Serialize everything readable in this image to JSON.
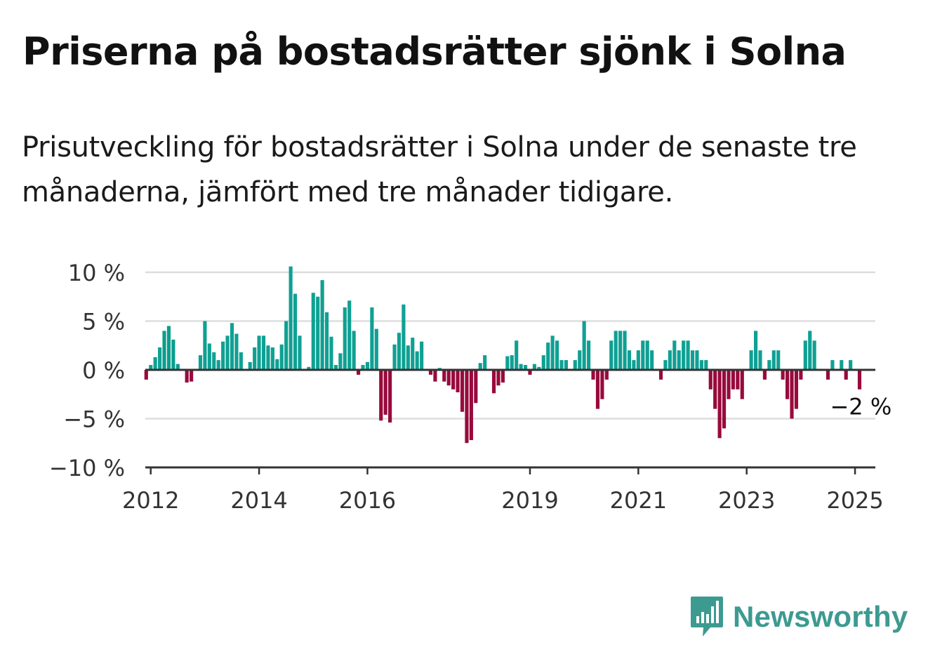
{
  "title": "Priserna på bostadsrätter sjönk i Solna",
  "subtitle": "Prisutveckling för bostadsrätter i Solna under de senaste tre månaderna, jämfört med tre månader tidigare.",
  "brand": {
    "name": "Newsworthy",
    "icon": "newsworthy-logo-icon",
    "color": "#3d9a91"
  },
  "colors": {
    "positive": "#0fa093",
    "negative": "#980a3c",
    "highlight": "#0a9e8e",
    "grid": "#dddddd",
    "axis": "#333333"
  },
  "chart_data": {
    "type": "bar",
    "title": "Priserna på bostadsrätter sjönk i Solna",
    "subtitle": "Prisutveckling för bostadsrätter i Solna under de senaste tre månaderna, jämfört med tre månader tidigare.",
    "xlabel": "",
    "ylabel": "",
    "ylim": [
      -10,
      10
    ],
    "yticks": [
      10,
      5,
      0,
      -5,
      -10
    ],
    "ytick_labels": [
      "10 %",
      "5 %",
      "0 %",
      "−5 %",
      "−10 %"
    ],
    "xticks": [
      2012,
      2014,
      2016,
      2019,
      2021,
      2023,
      2025
    ],
    "xtick_labels": [
      "2012",
      "2014",
      "2016",
      "2019",
      "2021",
      "2023",
      "2025"
    ],
    "grid": true,
    "highlight_range": [
      "2012-04",
      "2012-09"
    ],
    "annotation": {
      "text": "−2 %",
      "date": "2025-02",
      "value": -2
    },
    "x": [
      "2011-12",
      "2012-01",
      "2012-02",
      "2012-03",
      "2012-04",
      "2012-05",
      "2012-06",
      "2012-07",
      "2012-08",
      "2012-09",
      "2012-10",
      "2012-11",
      "2012-12",
      "2013-01",
      "2013-02",
      "2013-03",
      "2013-04",
      "2013-05",
      "2013-06",
      "2013-07",
      "2013-08",
      "2013-09",
      "2013-10",
      "2013-11",
      "2013-12",
      "2014-01",
      "2014-02",
      "2014-03",
      "2014-04",
      "2014-05",
      "2014-06",
      "2014-07",
      "2014-08",
      "2014-09",
      "2014-10",
      "2014-11",
      "2014-12",
      "2015-01",
      "2015-02",
      "2015-03",
      "2015-04",
      "2015-05",
      "2015-06",
      "2015-07",
      "2015-08",
      "2015-09",
      "2015-10",
      "2015-11",
      "2015-12",
      "2016-01",
      "2016-02",
      "2016-03",
      "2016-04",
      "2016-05",
      "2016-06",
      "2016-07",
      "2016-08",
      "2016-09",
      "2016-10",
      "2016-11",
      "2016-12",
      "2017-01",
      "2017-02",
      "2017-03",
      "2017-04",
      "2017-05",
      "2017-06",
      "2017-07",
      "2017-08",
      "2017-09",
      "2017-10",
      "2017-11",
      "2017-12",
      "2018-01",
      "2018-02",
      "2018-03",
      "2018-04",
      "2018-05",
      "2018-06",
      "2018-07",
      "2018-08",
      "2018-09",
      "2018-10",
      "2018-11",
      "2018-12",
      "2019-01",
      "2019-02",
      "2019-03",
      "2019-04",
      "2019-05",
      "2019-06",
      "2019-07",
      "2019-08",
      "2019-09",
      "2019-10",
      "2019-11",
      "2019-12",
      "2020-01",
      "2020-02",
      "2020-03",
      "2020-04",
      "2020-05",
      "2020-06",
      "2020-07",
      "2020-08",
      "2020-09",
      "2020-10",
      "2020-11",
      "2020-12",
      "2021-01",
      "2021-02",
      "2021-03",
      "2021-04",
      "2021-05",
      "2021-06",
      "2021-07",
      "2021-08",
      "2021-09",
      "2021-10",
      "2021-11",
      "2021-12",
      "2022-01",
      "2022-02",
      "2022-03",
      "2022-04",
      "2022-05",
      "2022-06",
      "2022-07",
      "2022-08",
      "2022-09",
      "2022-10",
      "2022-11",
      "2022-12",
      "2023-01",
      "2023-02",
      "2023-03",
      "2023-04",
      "2023-05",
      "2023-06",
      "2023-07",
      "2023-08",
      "2023-09",
      "2023-10",
      "2023-11",
      "2023-12",
      "2024-01",
      "2024-02",
      "2024-03",
      "2024-04",
      "2024-05",
      "2024-06",
      "2024-07",
      "2024-08",
      "2024-09",
      "2024-10",
      "2024-11",
      "2024-12",
      "2025-01",
      "2025-02"
    ],
    "values": [
      -1,
      0.5,
      1.3,
      2.3,
      4,
      4.5,
      3.1,
      0.6,
      0,
      -1.3,
      -1.2,
      -0.1,
      1.5,
      5,
      2.7,
      1.8,
      1,
      2.9,
      3.5,
      4.8,
      3.7,
      1.8,
      0,
      0.8,
      2.3,
      3.5,
      3.5,
      2.5,
      2.3,
      1.1,
      2.6,
      5,
      10.6,
      7.8,
      3.5,
      0,
      0.3,
      7.9,
      7.5,
      9.2,
      5.9,
      3.4,
      0.5,
      1.7,
      6.4,
      7.1,
      4,
      -0.5,
      0.5,
      0.8,
      6.4,
      4.2,
      -5.2,
      -4.6,
      -5.4,
      2.6,
      3.8,
      6.7,
      2.5,
      3.3,
      1.9,
      2.9,
      0,
      -0.5,
      -1.2,
      0.2,
      -1.2,
      -1.6,
      -2,
      -2.3,
      -4.3,
      -7.5,
      -7.2,
      -3.4,
      0.7,
      1.5,
      0,
      -2.4,
      -1.6,
      -1.3,
      1.4,
      1.5,
      3,
      0.6,
      0.5,
      -0.5,
      0.6,
      0.3,
      1.5,
      2.8,
      3.5,
      3,
      1,
      1,
      0,
      1,
      2,
      5,
      3,
      -1,
      -4,
      -3,
      -1,
      3,
      4,
      4,
      4,
      2,
      1,
      2,
      3,
      3,
      2,
      0,
      -1,
      1,
      2,
      3,
      2,
      3,
      3,
      2,
      2,
      1,
      1,
      -2,
      -4,
      -7,
      -6,
      -3,
      -2,
      -2,
      -3,
      0,
      2,
      4,
      2,
      -1,
      1,
      2,
      2,
      -1,
      -3,
      -5,
      -4,
      -1,
      3,
      4,
      3,
      0,
      0,
      -1,
      1,
      0,
      1,
      -1,
      1,
      0,
      -2
    ]
  }
}
